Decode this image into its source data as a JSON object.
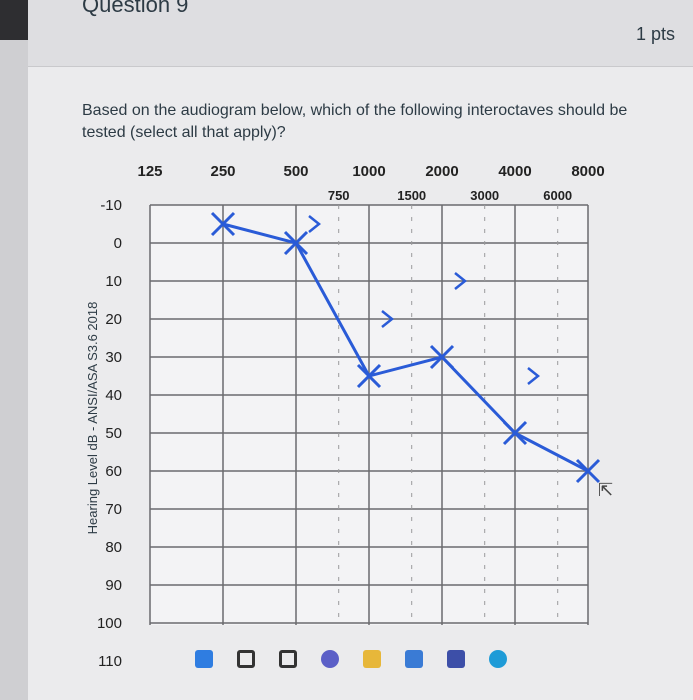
{
  "question": {
    "title": "Question 9",
    "points": "1 pts",
    "text": "Based on the audiogram below, which of the following interoctaves should be tested (select all that apply)?"
  },
  "chart_data": {
    "type": "scatter",
    "ylabel": "Hearing Level dB - ANSI/ASA S3.6 2018",
    "octave_frequencies": [
      "125",
      "250",
      "500",
      "1000",
      "2000",
      "4000",
      "8000"
    ],
    "interoctave_frequencies": [
      "750",
      "1500",
      "3000",
      "6000"
    ],
    "y_ticks": [
      "-10",
      "0",
      "10",
      "20",
      "30",
      "40",
      "50",
      "60",
      "70",
      "80",
      "90",
      "100",
      "110"
    ],
    "ylim": [
      -10,
      110
    ],
    "y_inverted": true,
    "grid": true,
    "series": [
      {
        "symbol": "X",
        "color": "#2a5bd7",
        "x": [
          250,
          500,
          1000,
          2000,
          4000,
          8000
        ],
        "y": [
          -5,
          0,
          35,
          30,
          50,
          60
        ]
      },
      {
        "symbol": ">",
        "color": "#2a5bd7",
        "x": [
          500,
          1000,
          2000,
          4000
        ],
        "y": [
          -5,
          20,
          10,
          35
        ]
      }
    ]
  },
  "taskbar": {
    "icons": [
      "windows-icon",
      "search-icon",
      "task-view-icon",
      "chat-icon",
      "folder-icon",
      "store-icon",
      "photos-icon",
      "edge-icon"
    ]
  }
}
